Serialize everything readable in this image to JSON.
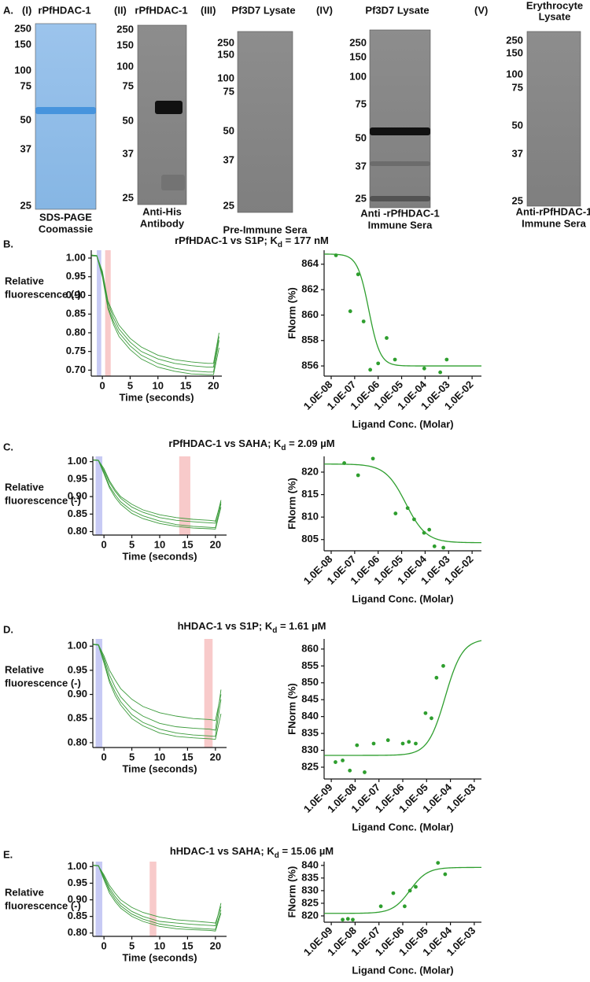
{
  "figure": {
    "panel_label": "A.",
    "gels": [
      {
        "label": "(I)",
        "title": [
          "rPfHDAC-1"
        ],
        "markers": [
          250,
          150,
          100,
          75,
          50,
          37,
          25
        ],
        "caption": [
          "SDS-PAGE",
          "Coomassie"
        ]
      },
      {
        "label": "(II)",
        "title": [
          "rPfHDAC-1"
        ],
        "markers": [
          250,
          150,
          100,
          75,
          50,
          37,
          25
        ],
        "caption": [
          "Anti-His",
          "Antibody"
        ]
      },
      {
        "label": "(III)",
        "title": [
          "Pf3D7 Lysate"
        ],
        "markers": [
          250,
          150,
          100,
          75,
          50,
          37,
          25
        ],
        "caption": [
          "Pre-Immune Sera"
        ]
      },
      {
        "label": "(IV)",
        "title": [
          "Pf3D7 Lysate"
        ],
        "markers": [
          250,
          150,
          100,
          75,
          50,
          37,
          25
        ],
        "caption": [
          "Anti -rPfHDAC-1",
          "Immune Sera"
        ]
      },
      {
        "label": "(V)",
        "title": [
          "Erythrocyte",
          "Lysate"
        ],
        "markers": [
          250,
          150,
          100,
          75,
          50,
          37,
          25
        ],
        "caption": [
          "Anti-rPfHDAC-1",
          "Immune Sera"
        ]
      }
    ]
  },
  "chart_data": [
    {
      "type": "line",
      "panel_label": "B.",
      "title": {
        "main": "rPfHDAC-1 vs S1P;  K",
        "sub": "d",
        "rest": " = 177 nM"
      },
      "x_label": "Time (seconds)",
      "y_label": [
        "Relative",
        "fluorescence (-)"
      ],
      "x": [
        -1.9,
        -1,
        0,
        1,
        2,
        3,
        5,
        7,
        10,
        13,
        16,
        19,
        20,
        21
      ],
      "series": [
        {
          "color": "#3a9a3a",
          "values": [
            1.008,
            1.007,
            0.96,
            0.88,
            0.84,
            0.81,
            0.775,
            0.75,
            0.73,
            0.718,
            0.712,
            0.708,
            0.708,
            0.79
          ]
        },
        {
          "color": "#3a9a3a",
          "values": [
            1.007,
            1.006,
            0.955,
            0.87,
            0.83,
            0.8,
            0.765,
            0.74,
            0.718,
            0.705,
            0.698,
            0.695,
            0.695,
            0.78
          ]
        },
        {
          "color": "#3a9a3a",
          "values": [
            1.006,
            1.005,
            0.95,
            0.865,
            0.822,
            0.79,
            0.755,
            0.73,
            0.708,
            0.697,
            0.69,
            0.688,
            0.688,
            0.76
          ]
        },
        {
          "color": "#3a9a3a",
          "values": [
            1.008,
            1.006,
            0.965,
            0.885,
            0.85,
            0.82,
            0.785,
            0.762,
            0.74,
            0.728,
            0.722,
            0.718,
            0.718,
            0.8
          ]
        }
      ],
      "regions": [
        {
          "range": [
            -1,
            -0.2
          ],
          "color": "#b4b8f0"
        },
        {
          "range": [
            0.5,
            1.5
          ],
          "color": "#f6b8b8"
        }
      ],
      "xlim": [
        -2,
        21.5
      ],
      "xticks": [
        0,
        5,
        10,
        15,
        20
      ],
      "ylim": [
        0.684,
        1.021
      ],
      "yticks": [
        {
          "value": 0.7,
          "label": "0.70"
        },
        0.75,
        {
          "value": 0.8,
          "label": "0.80"
        },
        0.85,
        {
          "value": 0.9,
          "label": "0.90"
        },
        0.95,
        {
          "value": 1,
          "label": "1.00"
        }
      ]
    },
    {
      "type": "scatter",
      "x_label": "Ligand Conc. (Molar)",
      "y_label": "FNorm (%)",
      "log_x": true,
      "color": "#2e9e2e",
      "x": [
        1.6e-08,
        6.5e-08,
        1.4e-07,
        2.4e-07,
        4.6e-07,
        1e-06,
        2.3e-06,
        5.2e-06,
        9.2e-05,
        0.00044,
        0.00083
      ],
      "values": [
        864.7,
        860.3,
        863.2,
        859.5,
        855.7,
        856.2,
        858.2,
        856.5,
        855.8,
        855.5,
        856.5
      ],
      "fit": {
        "start": 864.8,
        "end": 856,
        "ec50": 4e-07,
        "hill": 1.8
      },
      "xlim": [
        5e-09,
        0.025
      ],
      "xticks": [
        {
          "value": 1e-08,
          "label": "1.0E-08"
        },
        {
          "value": 1e-07,
          "label": "1.0E-07"
        },
        {
          "value": 1e-06,
          "label": "1.0E-06"
        },
        {
          "value": 1e-05,
          "label": "1.0E-05"
        },
        {
          "value": 0.0001,
          "label": "1.0E-04"
        },
        {
          "value": 0.001,
          "label": "1.0E-03"
        },
        {
          "value": 0.01,
          "label": "1.0E-02"
        }
      ],
      "ylim": [
        855.2,
        865.1
      ],
      "yticks": [
        856,
        858,
        860,
        862,
        864
      ]
    },
    {
      "type": "line",
      "panel_label": "C.",
      "title": {
        "main": "rPfHDAC-1 vs SAHA;  K",
        "sub": "d",
        "rest": " = 2.09 µM"
      },
      "x_label": "Time (seconds)",
      "y_label": [
        "Relative",
        "fluorescence (-)"
      ],
      "x": [
        -1.9,
        -1,
        0,
        1,
        2,
        3,
        5,
        7,
        10,
        13,
        16,
        19,
        20,
        21
      ],
      "series": [
        {
          "color": "#3a9a3a",
          "values": [
            1.005,
            1.004,
            0.975,
            0.94,
            0.915,
            0.895,
            0.87,
            0.855,
            0.84,
            0.832,
            0.828,
            0.825,
            0.824,
            0.89
          ]
        },
        {
          "color": "#3a9a3a",
          "values": [
            1.005,
            1.004,
            0.97,
            0.93,
            0.905,
            0.885,
            0.86,
            0.845,
            0.83,
            0.82,
            0.815,
            0.812,
            0.811,
            0.88
          ]
        },
        {
          "color": "#3a9a3a",
          "values": [
            1.004,
            1.003,
            0.965,
            0.925,
            0.898,
            0.878,
            0.852,
            0.837,
            0.823,
            0.815,
            0.81,
            0.808,
            0.807,
            0.87
          ]
        },
        {
          "color": "#3a9a3a",
          "values": [
            1.005,
            1.004,
            0.98,
            0.945,
            0.92,
            0.9,
            0.878,
            0.862,
            0.848,
            0.84,
            0.835,
            0.832,
            0.83,
            0.885
          ]
        }
      ],
      "regions": [
        {
          "range": [
            -1.5,
            -0.3
          ],
          "color": "#b4b8f0"
        },
        {
          "range": [
            13.5,
            15.5
          ],
          "color": "#f6b8b8"
        }
      ],
      "xlim": [
        -2,
        22
      ],
      "xticks": [
        0,
        5,
        10,
        15,
        20
      ],
      "ylim": [
        0.79,
        1.015
      ],
      "yticks": [
        {
          "value": 0.8,
          "label": "0.80"
        },
        0.85,
        {
          "value": 0.9,
          "label": "0.90"
        },
        0.95,
        {
          "value": 1,
          "label": "1.00"
        }
      ]
    },
    {
      "type": "scatter",
      "x_label": "Ligand Conc. (Molar)",
      "y_label": "FNorm (%)",
      "log_x": true,
      "color": "#2e9e2e",
      "x": [
        3.6e-08,
        1.4e-07,
        6e-07,
        5.5e-06,
        1.8e-05,
        3.4e-05,
        9e-05,
        0.00015,
        0.00025,
        0.0006
      ],
      "values": [
        822,
        819.3,
        823,
        810.8,
        812,
        809.5,
        806.5,
        807.2,
        803.5,
        803.2
      ],
      "fit": {
        "start": 821.8,
        "end": 804.3,
        "ec50": 1.5e-05,
        "hill": 1
      },
      "xlim": [
        5e-09,
        0.025
      ],
      "xticks": [
        {
          "value": 1e-08,
          "label": "1.0E-08"
        },
        {
          "value": 1e-07,
          "label": "1.0E-07"
        },
        {
          "value": 1e-06,
          "label": "1.0E-06"
        },
        {
          "value": 1e-05,
          "label": "1.0E-05"
        },
        {
          "value": 0.0001,
          "label": "1.0E-04"
        },
        {
          "value": 0.001,
          "label": "1.0E-03"
        },
        {
          "value": 0.01,
          "label": "1.0E-02"
        }
      ],
      "ylim": [
        802.5,
        823.5
      ],
      "yticks": [
        805,
        810,
        815,
        820
      ]
    },
    {
      "type": "line",
      "panel_label": "D.",
      "title": {
        "main": "hHDAC-1 vs S1P;  K",
        "sub": "d",
        "rest": " = 1.61 µM"
      },
      "x_label": "Time (seconds)",
      "y_label": [
        "Relative",
        "fluorescence (-)"
      ],
      "x": [
        -1.9,
        -1,
        0,
        1,
        2,
        3,
        5,
        7,
        10,
        13,
        16,
        19,
        20,
        21
      ],
      "series": [
        {
          "color": "#3a9a3a",
          "values": [
            1.004,
            1.003,
            0.975,
            0.94,
            0.915,
            0.895,
            0.87,
            0.855,
            0.84,
            0.833,
            0.83,
            0.828,
            0.826,
            0.91
          ]
        },
        {
          "color": "#3a9a3a",
          "values": [
            1.004,
            1.003,
            0.97,
            0.93,
            0.905,
            0.885,
            0.858,
            0.842,
            0.828,
            0.82,
            0.816,
            0.814,
            0.813,
            0.89
          ]
        },
        {
          "color": "#3a9a3a",
          "values": [
            1.003,
            1.002,
            0.965,
            0.925,
            0.898,
            0.878,
            0.85,
            0.835,
            0.82,
            0.813,
            0.81,
            0.808,
            0.807,
            0.86
          ]
        },
        {
          "color": "#3a9a3a",
          "values": [
            1.004,
            1.003,
            0.98,
            0.95,
            0.93,
            0.912,
            0.89,
            0.875,
            0.862,
            0.855,
            0.85,
            0.848,
            0.846,
            0.9
          ]
        }
      ],
      "regions": [
        {
          "range": [
            -1.5,
            -0.3
          ],
          "color": "#b4b8f0"
        },
        {
          "range": [
            18,
            19.5
          ],
          "color": "#f6b8b8"
        }
      ],
      "xlim": [
        -2,
        22
      ],
      "xticks": [
        0,
        5,
        10,
        15,
        20
      ],
      "ylim": [
        0.79,
        1.015
      ],
      "yticks": [
        {
          "value": 0.8,
          "label": "0.80"
        },
        0.85,
        {
          "value": 0.9,
          "label": "0.90"
        },
        0.95,
        {
          "value": 1,
          "label": "1.00"
        }
      ]
    },
    {
      "type": "scatter",
      "x_label": "Ligand Conc. (Molar)",
      "y_label": "FNorm (%)",
      "log_x": true,
      "color": "#2e9e2e",
      "x": [
        1.5e-09,
        3e-09,
        6e-09,
        1.2e-08,
        2.5e-08,
        6e-08,
        2.4e-07,
        1e-06,
        1.8e-06,
        3.5e-06,
        9e-06,
        1.6e-05,
        2.6e-05,
        5e-05
      ],
      "values": [
        826.5,
        827,
        824,
        831.5,
        823.5,
        832,
        833,
        832,
        832.5,
        832,
        841,
        839.5,
        851.5,
        855
      ],
      "fit": {
        "start": 828.5,
        "end": 863,
        "ec50": 6e-05,
        "hill": 1.2
      },
      "xlim": [
        5e-10,
        0.002
      ],
      "xticks": [
        {
          "value": 1e-09,
          "label": "1.0E-09"
        },
        {
          "value": 1e-08,
          "label": "1.0E-08"
        },
        {
          "value": 1e-07,
          "label": "1.0E-07"
        },
        {
          "value": 1e-06,
          "label": "1.0E-06"
        },
        {
          "value": 1e-05,
          "label": "1.0E-05"
        },
        {
          "value": 0.0001,
          "label": "1.0E-04"
        },
        {
          "value": 0.001,
          "label": "1.0E-03"
        }
      ],
      "ylim": [
        821.5,
        863
      ],
      "yticks": [
        825,
        830,
        835,
        840,
        845,
        850,
        855,
        860
      ]
    },
    {
      "type": "line",
      "panel_label": "E.",
      "title": {
        "main": "hHDAC-1 vs SAHA;  K",
        "sub": "d",
        "rest": " = 15.06 µM"
      },
      "x_label": "Time (seconds)",
      "y_label": [
        "Relative",
        "fluorescence (-)"
      ],
      "x": [
        -1.9,
        -1,
        0,
        1,
        2,
        3,
        5,
        7,
        10,
        13,
        16,
        19,
        20,
        21
      ],
      "series": [
        {
          "color": "#3a9a3a",
          "values": [
            1.004,
            1.003,
            0.97,
            0.935,
            0.91,
            0.89,
            0.865,
            0.85,
            0.835,
            0.83,
            0.826,
            0.823,
            0.822,
            0.89
          ]
        },
        {
          "color": "#3a9a3a",
          "values": [
            1.004,
            1.003,
            0.965,
            0.928,
            0.902,
            0.882,
            0.857,
            0.842,
            0.827,
            0.82,
            0.815,
            0.812,
            0.811,
            0.87
          ]
        },
        {
          "color": "#3a9a3a",
          "values": [
            1.003,
            1.002,
            0.975,
            0.943,
            0.92,
            0.9,
            0.877,
            0.862,
            0.848,
            0.84,
            0.836,
            0.832,
            0.83,
            0.88
          ]
        },
        {
          "color": "#3a9a3a",
          "values": [
            1.004,
            1.003,
            0.96,
            0.92,
            0.895,
            0.875,
            0.85,
            0.835,
            0.82,
            0.813,
            0.81,
            0.808,
            0.806,
            0.86
          ]
        }
      ],
      "regions": [
        {
          "range": [
            -1.5,
            -0.3
          ],
          "color": "#b4b8f0"
        },
        {
          "range": [
            8.2,
            9.4
          ],
          "color": "#f6b8b8"
        }
      ],
      "xlim": [
        -2,
        22
      ],
      "xticks": [
        0,
        5,
        10,
        15,
        20
      ],
      "ylim": [
        0.79,
        1.015
      ],
      "yticks": [
        {
          "value": 0.8,
          "label": "0.80"
        },
        0.85,
        {
          "value": 0.9,
          "label": "0.90"
        },
        0.95,
        {
          "value": 1,
          "label": "1.00"
        }
      ]
    },
    {
      "type": "scatter",
      "x_label": "Ligand Conc. (Molar)",
      "y_label": "FNorm (%)",
      "log_x": true,
      "color": "#2e9e2e",
      "x": [
        3e-09,
        5e-09,
        8e-09,
        1.2e-07,
        4e-07,
        1.2e-06,
        2e-06,
        3.5e-06,
        3e-05,
        6e-05
      ],
      "values": [
        818.5,
        818.8,
        818.5,
        823.8,
        829,
        823.8,
        830,
        831.5,
        841,
        836.5
      ],
      "fit": {
        "start": 821,
        "end": 839.2,
        "ec50": 2e-06,
        "hill": 1.2
      },
      "xlim": [
        5e-10,
        0.002
      ],
      "xticks": [
        {
          "value": 1e-09,
          "label": "1.0E-09"
        },
        {
          "value": 1e-08,
          "label": "1.0E-08"
        },
        {
          "value": 1e-07,
          "label": "1.0E-07"
        },
        {
          "value": 1e-06,
          "label": "1.0E-06"
        },
        {
          "value": 1e-05,
          "label": "1.0E-05"
        },
        {
          "value": 0.0001,
          "label": "1.0E-04"
        },
        {
          "value": 0.001,
          "label": "1.0E-03"
        }
      ],
      "ylim": [
        817.5,
        841.5
      ],
      "yticks": [
        820,
        825,
        830,
        835,
        840
      ]
    }
  ]
}
